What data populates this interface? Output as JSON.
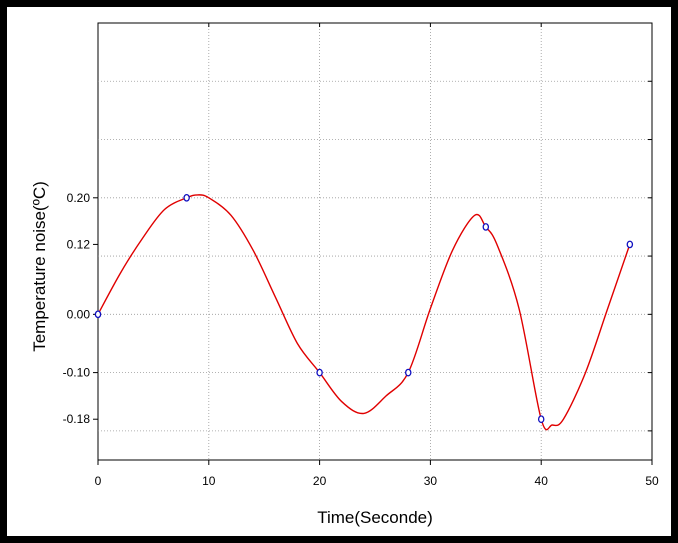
{
  "chart_data": {
    "type": "scatter",
    "title": "",
    "xlabel": "Time(Seconde)",
    "ylabel": "Temperature noise(ºC)",
    "xlim": [
      0,
      50
    ],
    "ylim": [
      -0.25,
      0.5
    ],
    "xticks": [
      0,
      10,
      20,
      30,
      40,
      50
    ],
    "yticks": [
      0.2,
      0.12,
      0.0,
      -0.1,
      -0.18
    ],
    "ytick_labels": [
      "0.20",
      "0.12",
      "0.00",
      "-0.10",
      "-0.18"
    ],
    "grid": true,
    "legend": "none",
    "series": [
      {
        "kind": "points",
        "color": "#1010c0",
        "x": [
          0,
          8,
          20,
          28,
          35,
          40,
          48
        ],
        "y": [
          0.0,
          0.2,
          -0.1,
          -0.1,
          0.15,
          -0.18,
          0.12
        ]
      },
      {
        "kind": "curve",
        "color": "#e00000",
        "x": [
          0,
          2,
          4,
          6,
          8,
          9,
          10,
          12,
          14,
          16,
          18,
          20,
          22,
          24,
          26,
          28,
          30,
          32,
          34,
          35,
          36,
          38,
          40,
          41,
          42,
          44,
          46,
          48
        ],
        "y": [
          0.0,
          0.07,
          0.13,
          0.18,
          0.2,
          0.205,
          0.2,
          0.17,
          0.11,
          0.03,
          -0.05,
          -0.1,
          -0.15,
          -0.17,
          -0.14,
          -0.1,
          0.01,
          0.11,
          0.17,
          0.15,
          0.12,
          0.01,
          -0.18,
          -0.19,
          -0.18,
          -0.1,
          0.01,
          0.12
        ]
      }
    ]
  }
}
